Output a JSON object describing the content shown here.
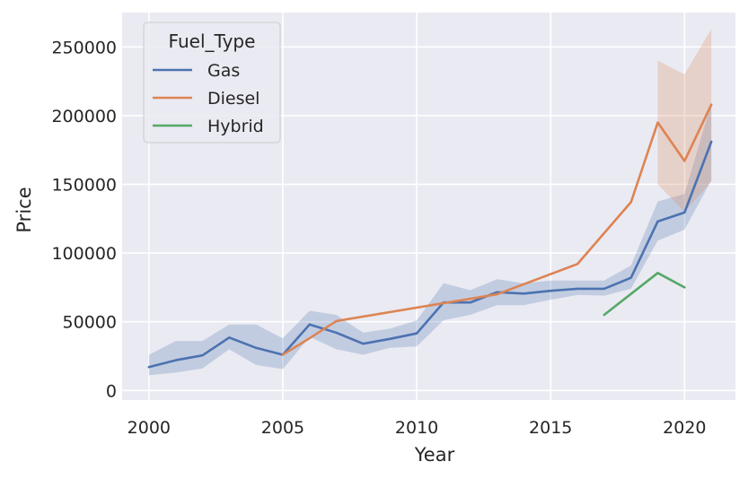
{
  "chart_data": {
    "type": "line",
    "xlabel": "Year",
    "ylabel": "Price",
    "xlim": [
      1999,
      2021.9
    ],
    "ylim": [
      -7000,
      275000
    ],
    "xticks": [
      2000,
      2005,
      2010,
      2015,
      2020
    ],
    "yticks": [
      0,
      50000,
      100000,
      150000,
      200000,
      250000
    ],
    "grid": true,
    "legend": {
      "title": "Fuel_Type",
      "placement": "top-left"
    },
    "series": [
      {
        "name": "Gas",
        "color": "#4c72b0",
        "x": [
          2000,
          2001,
          2002,
          2003,
          2004,
          2005,
          2006,
          2007,
          2008,
          2009,
          2010,
          2011,
          2012,
          2013,
          2014,
          2015,
          2016,
          2017,
          2018,
          2019,
          2020,
          2021
        ],
        "y": [
          17000,
          22000,
          25500,
          38500,
          31000,
          26000,
          48000,
          42000,
          34000,
          37500,
          41500,
          64000,
          64000,
          71500,
          70500,
          72500,
          74000,
          74000,
          82000,
          123000,
          129500,
          181000
        ],
        "ci_low": [
          11000,
          13000,
          16000,
          30000,
          18500,
          15500,
          39000,
          30000,
          26000,
          31000,
          32000,
          51000,
          55000,
          62000,
          62000,
          66000,
          69500,
          69000,
          74000,
          109000,
          117000,
          153000
        ],
        "ci_high": [
          26000,
          36000,
          36000,
          48000,
          48000,
          38000,
          58000,
          55000,
          42000,
          45000,
          51000,
          78000,
          73000,
          81000,
          78000,
          80000,
          80000,
          80000,
          91000,
          137500,
          143000,
          209000
        ]
      },
      {
        "name": "Diesel",
        "color": "#dd8452",
        "x": [
          2005,
          2006,
          2007,
          2013,
          2016,
          2018,
          2019,
          2020,
          2021
        ],
        "y": [
          26000,
          38000,
          50500,
          70000,
          92000,
          137000,
          195000,
          167000,
          208000
        ],
        "ci_low": [
          null,
          null,
          null,
          null,
          null,
          null,
          150000,
          130000,
          152000
        ],
        "ci_high": [
          null,
          null,
          null,
          null,
          null,
          null,
          240000,
          230000,
          263000
        ]
      },
      {
        "name": "Hybrid",
        "color": "#55a868",
        "x": [
          2017,
          2019,
          2020
        ],
        "y": [
          55000,
          85500,
          75000
        ],
        "ci_low": [
          null,
          null,
          null
        ],
        "ci_high": [
          null,
          null,
          null
        ]
      }
    ]
  }
}
